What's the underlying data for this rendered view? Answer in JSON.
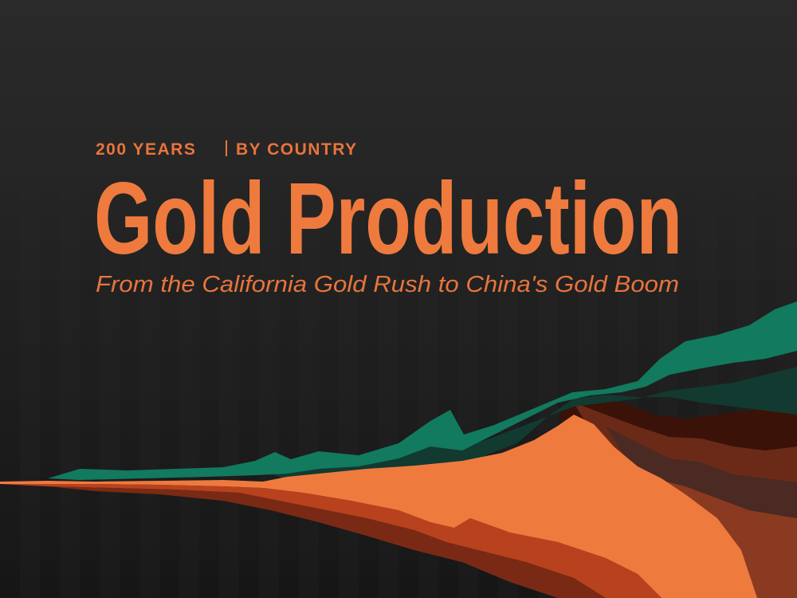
{
  "header": {
    "kicker_left": "200 YEARS",
    "kicker_right": "BY COUNTRY",
    "title": "Gold Production",
    "subtitle": "From the California Gold Rush to China's Gold Boom"
  }
}
